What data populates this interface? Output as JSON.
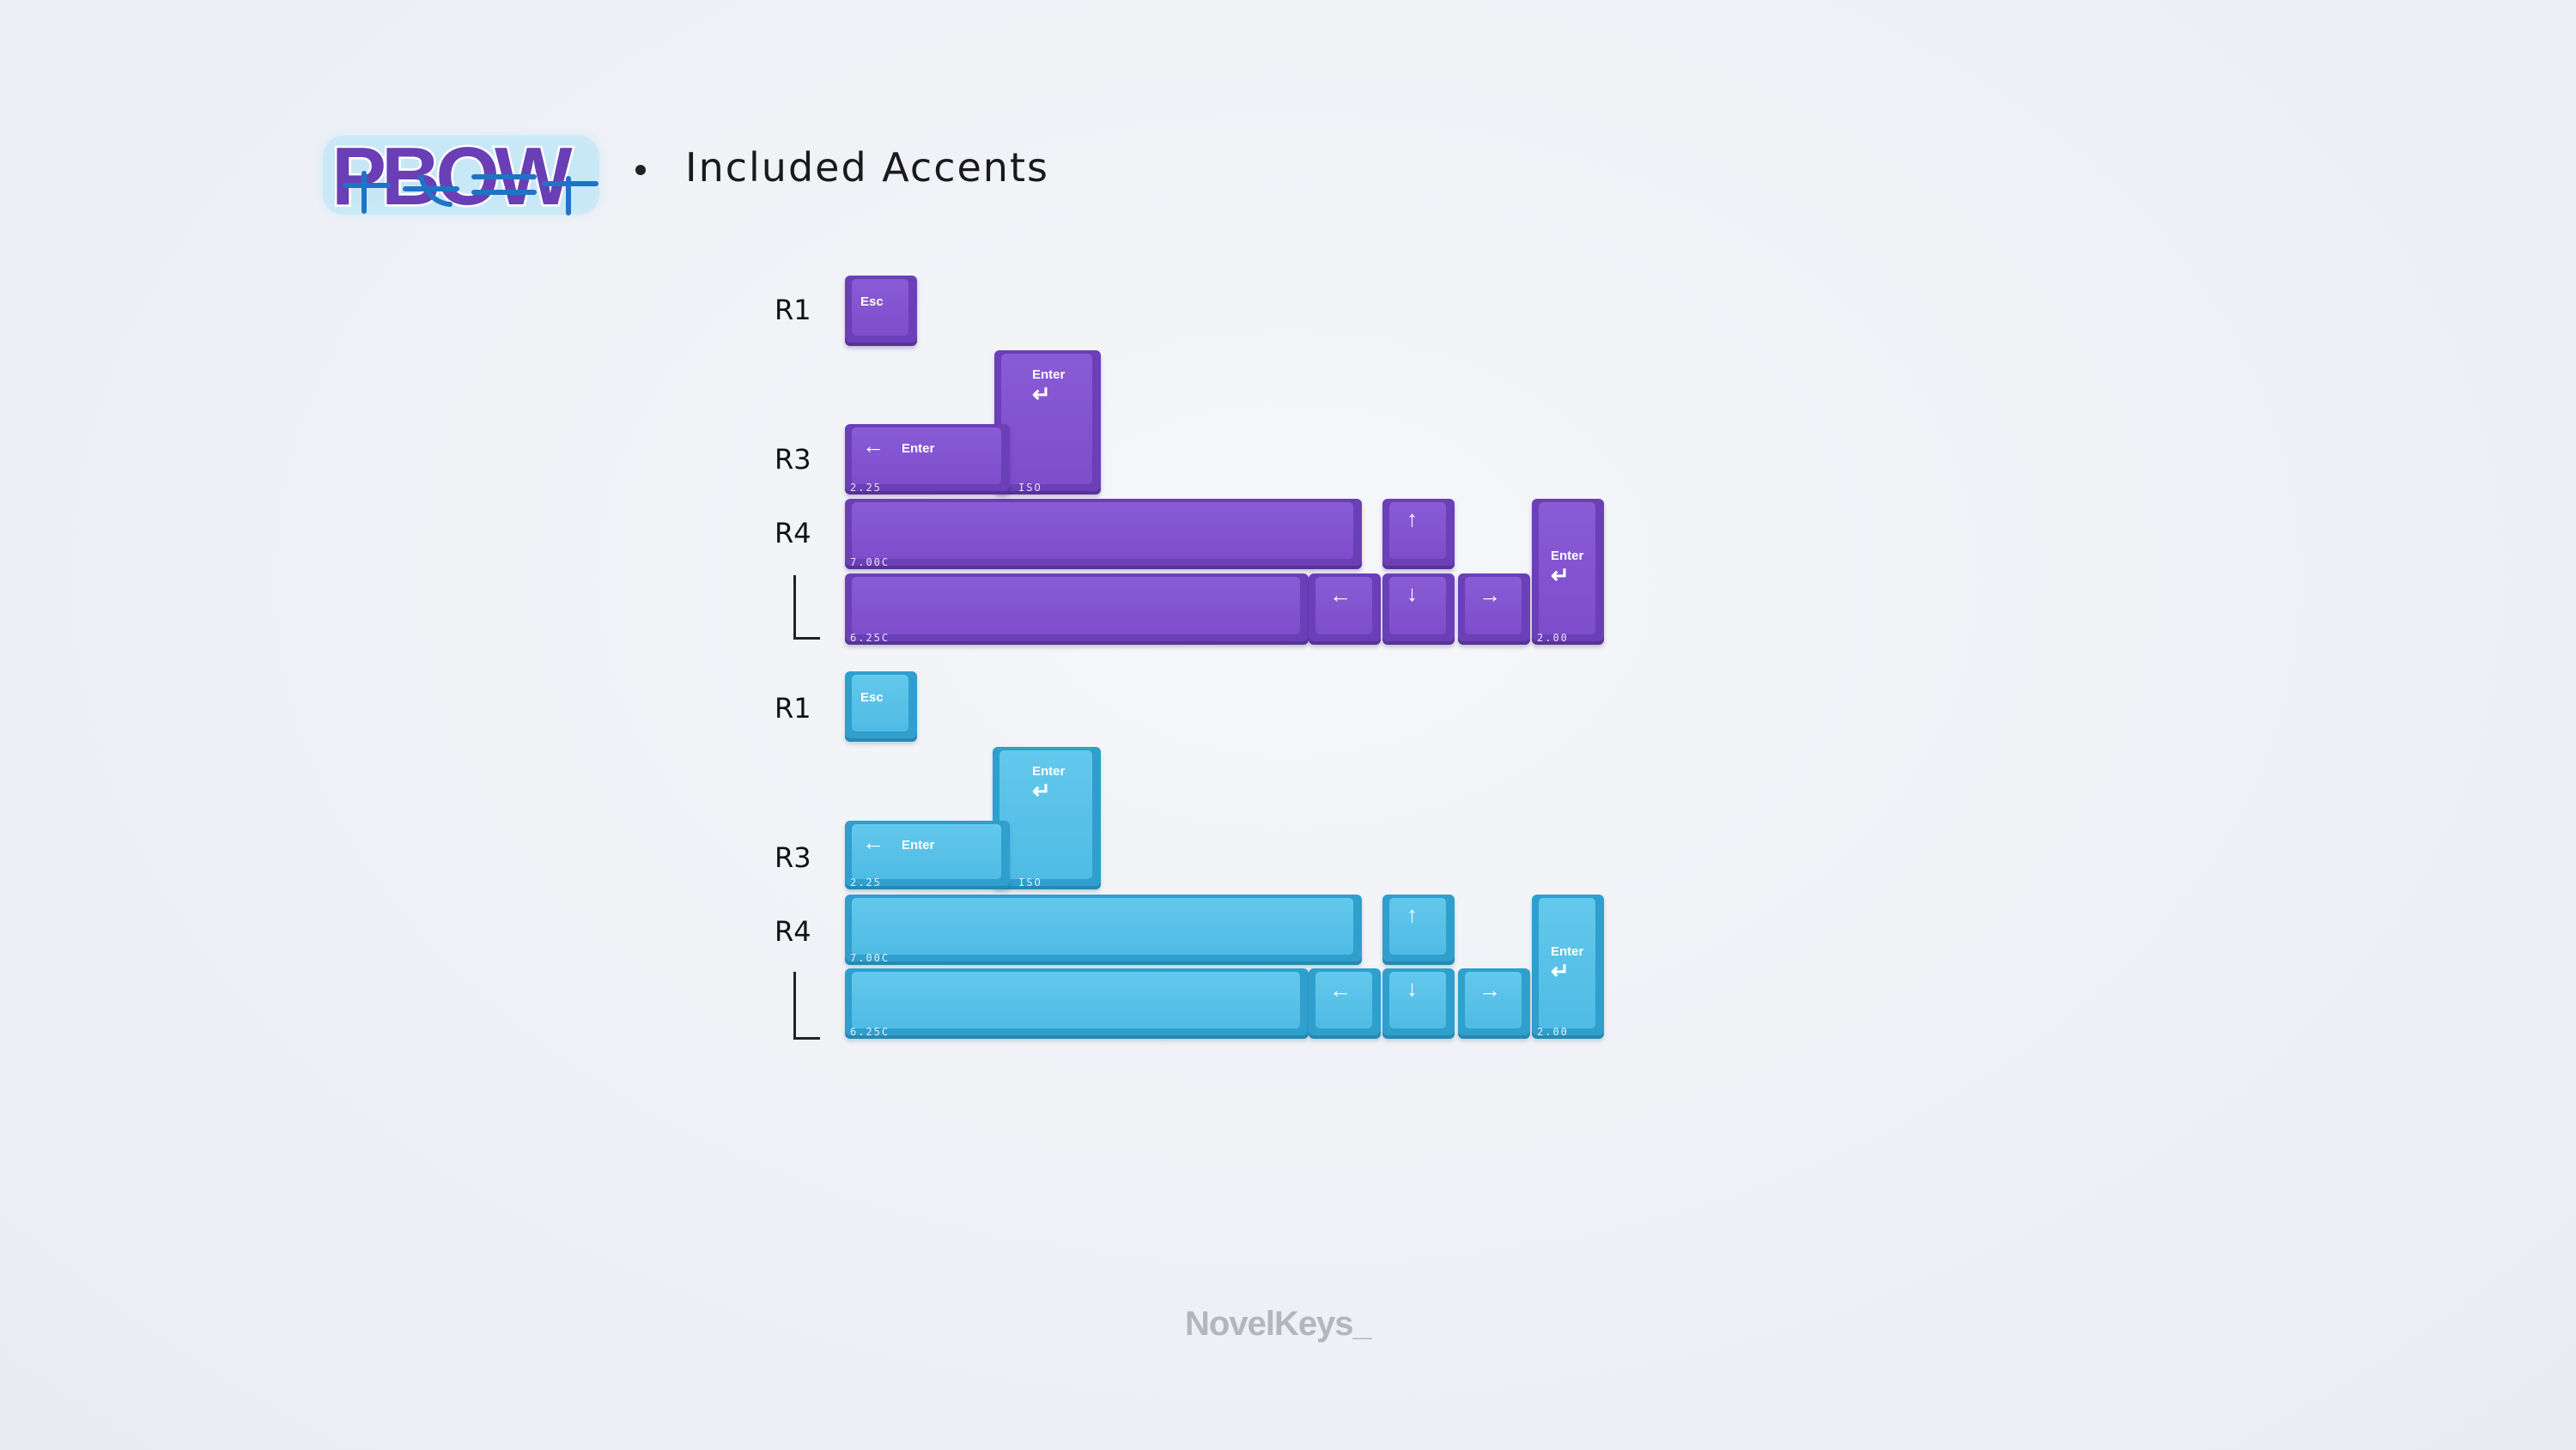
{
  "header": {
    "logo_text": "PBOW",
    "title": "Included Accents"
  },
  "kits": [
    {
      "name": "purple",
      "labels": {
        "r1": "R1",
        "r3": "R3",
        "r4": "R4"
      },
      "keys": {
        "esc": "Esc",
        "enter_225": "Enter",
        "enter_225_size": "2.25",
        "enter_iso": "Enter",
        "enter_iso_size": "ISO",
        "space_700": "7.00C",
        "space_625": "6.25C",
        "enter_200": "Enter",
        "enter_200_size": "2.00"
      }
    },
    {
      "name": "blue",
      "labels": {
        "r1": "R1",
        "r3": "R3",
        "r4": "R4"
      },
      "keys": {
        "esc": "Esc",
        "enter_225": "Enter",
        "enter_225_size": "2.25",
        "enter_iso": "Enter",
        "enter_iso_size": "ISO",
        "space_700": "7.00C",
        "space_625": "6.25C",
        "enter_200": "Enter",
        "enter_200_size": "2.00"
      }
    }
  ],
  "arrows": {
    "up": "↑",
    "down": "↓",
    "left": "←",
    "right": "→",
    "return": "↵"
  },
  "footer": {
    "brand": "NovelKeys_"
  },
  "colors": {
    "purple": "#7d4dcc",
    "blue": "#4fbbe4",
    "background": "#eef0f5"
  }
}
